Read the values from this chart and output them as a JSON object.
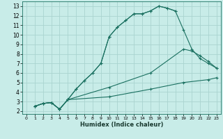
{
  "xlabel": "Humidex (Indice chaleur)",
  "bg_color": "#c8ece8",
  "grid_color": "#aad4cf",
  "line_color": "#1a7060",
  "xlim": [
    -0.5,
    23.5
  ],
  "ylim": [
    1.7,
    13.5
  ],
  "xticks": [
    0,
    1,
    2,
    3,
    4,
    5,
    6,
    7,
    8,
    9,
    10,
    11,
    12,
    13,
    14,
    15,
    16,
    17,
    18,
    19,
    20,
    21,
    22,
    23
  ],
  "yticks": [
    2,
    3,
    4,
    5,
    6,
    7,
    8,
    9,
    10,
    11,
    12,
    13
  ],
  "line1_x": [
    1,
    2,
    3,
    4,
    5,
    6,
    7,
    8,
    9,
    10,
    11,
    12,
    13,
    14,
    15,
    16,
    17,
    18
  ],
  "line1_y": [
    2.5,
    2.8,
    2.9,
    2.2,
    3.2,
    4.3,
    5.2,
    6.0,
    7.0,
    9.8,
    10.8,
    11.5,
    12.2,
    12.2,
    12.5,
    13.0,
    12.8,
    12.5
  ],
  "line2_x": [
    1,
    2,
    3,
    4,
    5,
    6,
    7,
    8,
    9,
    10,
    11,
    12,
    13,
    14,
    15,
    16,
    17,
    18,
    19,
    20,
    21,
    22,
    23
  ],
  "line2_y": [
    2.5,
    2.8,
    2.9,
    2.2,
    3.2,
    4.3,
    5.2,
    6.0,
    7.0,
    9.8,
    10.8,
    11.5,
    12.2,
    12.2,
    12.5,
    13.0,
    12.8,
    12.5,
    10.5,
    8.5,
    7.5,
    7.0,
    6.5
  ],
  "line3_x": [
    1,
    2,
    3,
    4,
    5,
    10,
    15,
    19,
    20,
    21,
    22,
    23
  ],
  "line3_y": [
    2.5,
    2.8,
    2.9,
    2.2,
    3.2,
    4.5,
    6.0,
    8.5,
    8.3,
    7.8,
    7.2,
    6.5
  ],
  "line4_x": [
    1,
    2,
    3,
    4,
    5,
    10,
    15,
    19,
    22,
    23
  ],
  "line4_y": [
    2.5,
    2.8,
    2.9,
    2.2,
    3.2,
    3.5,
    4.3,
    5.0,
    5.3,
    5.5
  ]
}
